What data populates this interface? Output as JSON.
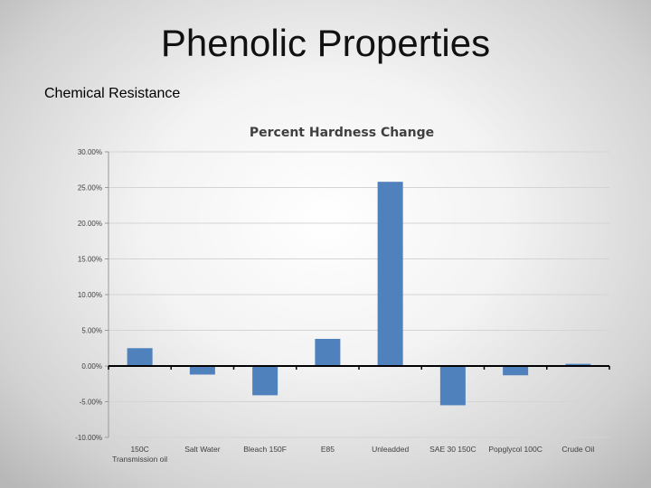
{
  "slide": {
    "title": "Phenolic Properties",
    "subtitle": "Chemical Resistance"
  },
  "chart_data": {
    "type": "bar",
    "title": "Percent Hardness Change",
    "categories": [
      [
        "150C",
        "Transmission oil"
      ],
      [
        "Salt Water"
      ],
      [
        "Bleach 150F"
      ],
      [
        "E85"
      ],
      [
        "Unleadded"
      ],
      [
        "SAE 30 150C"
      ],
      [
        "Popglycol 100C"
      ],
      [
        "Crude Oil"
      ]
    ],
    "values": [
      2.5,
      -1.2,
      -4.1,
      3.8,
      25.8,
      -5.5,
      -1.3,
      0.3
    ],
    "ylim": [
      -10,
      30
    ],
    "yticks": [
      30,
      25,
      20,
      15,
      10,
      5,
      0,
      -5,
      -10
    ],
    "ytick_labels": [
      "30.00%",
      "25.00%",
      "20.00%",
      "15.00%",
      "10.00%",
      "5.00%",
      "0.00%",
      "-5.00%",
      "-10.00%"
    ],
    "bar_color": "#4f81bd",
    "grid": true,
    "legend": "none"
  }
}
